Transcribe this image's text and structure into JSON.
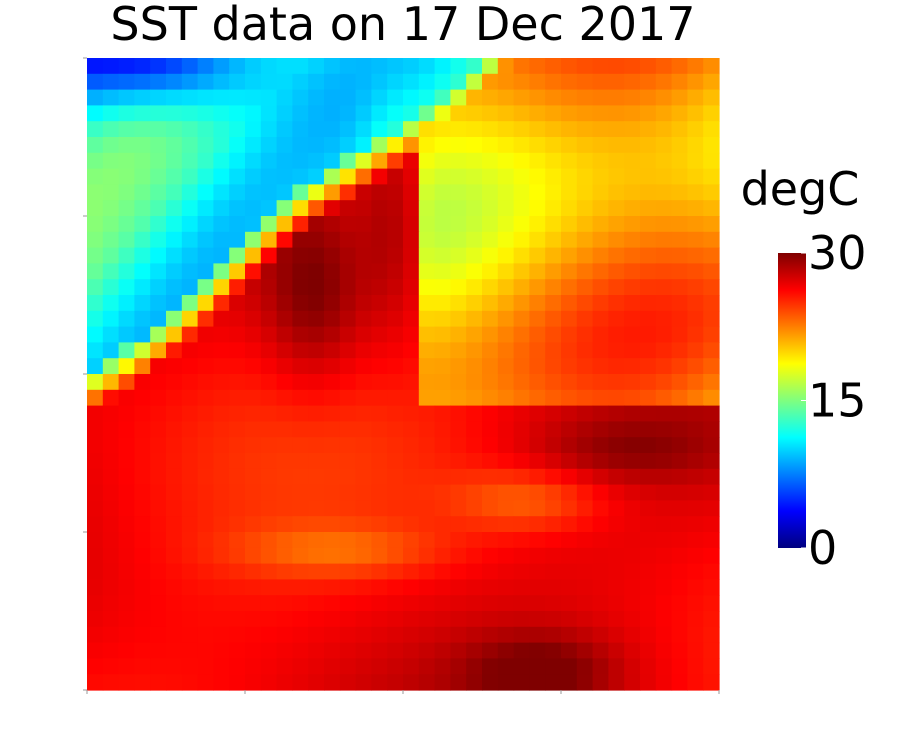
{
  "chart_data": {
    "type": "heatmap",
    "title": "SST data on 17 Dec 2017",
    "xlabel": "",
    "ylabel": "",
    "colorbar": {
      "label": "degC",
      "min": 0,
      "max": 30,
      "ticks": [
        {
          "value": 30,
          "label": "30"
        },
        {
          "value": 15,
          "label": "15"
        },
        {
          "value": 0,
          "label": "0"
        }
      ],
      "colormap": "jet",
      "colors": [
        "#00007f",
        "#0000ff",
        "#007fff",
        "#00ffff",
        "#7fff7f",
        "#ffff00",
        "#ff7f00",
        "#ff0000",
        "#7f0000"
      ]
    },
    "grid_size": [
      40,
      40
    ],
    "grid": false,
    "field_features": [
      {
        "region": "top-left corner",
        "value_degC": 5
      },
      {
        "region": "upper-left band",
        "value_degC": 13
      },
      {
        "region": "upper-right",
        "value_degC": 21
      },
      {
        "region": "center eddy core",
        "value_degC": 29
      },
      {
        "region": "lower half",
        "value_degC": 26
      },
      {
        "region": "bottom-center",
        "value_degC": 29
      }
    ]
  }
}
